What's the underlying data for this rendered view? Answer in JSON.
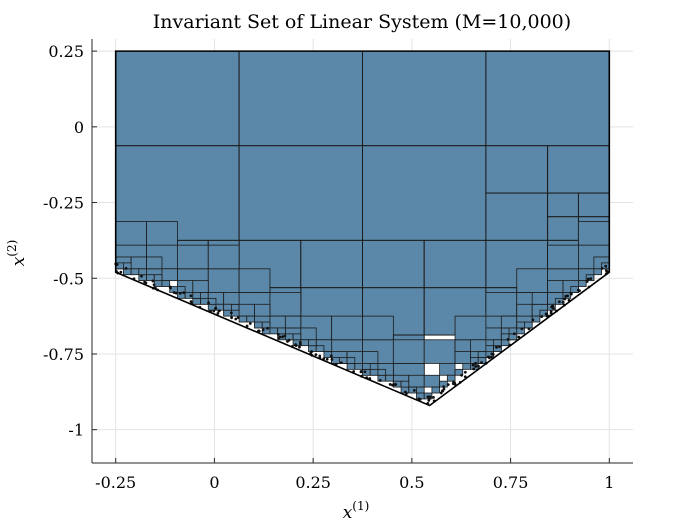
{
  "chart_data": {
    "type": "other",
    "title": "Invariant Set of Linear System (M=10,000)",
    "xlabel": "x",
    "xlabel_superscript": "(1)",
    "ylabel": "x",
    "ylabel_superscript": "(2)",
    "xlim": [
      -0.31,
      1.06
    ],
    "ylim": [
      -1.11,
      0.29
    ],
    "xticks": [
      -0.25,
      0,
      0.25,
      0.5,
      0.75,
      1
    ],
    "xtick_labels": [
      "-0.25",
      "0",
      "0.25",
      "0.5",
      "0.75",
      "1"
    ],
    "yticks": [
      0.25,
      0,
      -0.25,
      -0.5,
      -0.75,
      -1
    ],
    "ytick_labels": [
      "0.25",
      "0",
      "-0.25",
      "-0.5",
      "-0.75",
      "-1"
    ],
    "grid": true,
    "set_boundary": [
      [
        -0.25,
        0.25
      ],
      [
        1.0,
        0.25
      ],
      [
        1.0,
        -0.48
      ],
      [
        0.545,
        -0.92
      ],
      [
        -0.25,
        -0.48
      ]
    ],
    "fill_color": "#5b88a8",
    "cover_boxes": [
      [
        -0.25,
        0.0625,
        -0.0625,
        0.25
      ],
      [
        0.0625,
        0.375,
        -0.0625,
        0.25
      ],
      [
        0.375,
        0.6875,
        -0.0625,
        0.25
      ],
      [
        0.6875,
        1.0,
        -0.0625,
        0.25
      ],
      [
        -0.25,
        0.0625,
        -0.375,
        -0.0625
      ],
      [
        0.0625,
        0.375,
        -0.375,
        -0.0625
      ],
      [
        0.375,
        0.6875,
        -0.375,
        -0.0625
      ],
      [
        0.6875,
        0.84375,
        -0.21875,
        -0.0625
      ],
      [
        0.84375,
        1.0,
        -0.21875,
        -0.0625
      ],
      [
        0.6875,
        0.84375,
        -0.375,
        -0.21875
      ],
      [
        0.84375,
        0.921875,
        -0.296875,
        -0.21875
      ],
      [
        0.921875,
        1.0,
        -0.296875,
        -0.21875
      ],
      [
        0.84375,
        0.921875,
        -0.375,
        -0.296875
      ],
      [
        0.921875,
        1.0,
        -0.375,
        -0.296875
      ],
      [
        0.0625,
        0.21875,
        -0.53125,
        -0.375
      ],
      [
        0.21875,
        0.375,
        -0.53125,
        -0.375
      ],
      [
        0.375,
        0.53125,
        -0.53125,
        -0.375
      ],
      [
        0.53125,
        0.6875,
        -0.53125,
        -0.375
      ],
      [
        0.6875,
        0.84375,
        -0.53125,
        -0.375
      ],
      [
        0.84375,
        0.921875,
        -0.453125,
        -0.375
      ],
      [
        -0.25,
        -0.171875,
        -0.453125,
        -0.375
      ],
      [
        -0.171875,
        -0.09375,
        -0.453125,
        -0.375
      ],
      [
        -0.09375,
        -0.015625,
        -0.453125,
        -0.375
      ],
      [
        -0.015625,
        0.0625,
        -0.453125,
        -0.375
      ],
      [
        0.21875,
        0.375,
        -0.6875,
        -0.53125
      ],
      [
        0.375,
        0.53125,
        -0.6875,
        -0.53125
      ],
      [
        0.53125,
        0.6875,
        -0.6875,
        -0.53125
      ],
      [
        0.0625,
        0.140625,
        -0.609375,
        -0.53125
      ],
      [
        0.140625,
        0.21875,
        -0.609375,
        -0.53125
      ],
      [
        0.6875,
        0.765625,
        -0.609375,
        -0.53125
      ],
      [
        0.296875,
        0.375,
        -0.765625,
        -0.6875
      ],
      [
        0.375,
        0.453125,
        -0.765625,
        -0.6875
      ],
      [
        0.453125,
        0.53125,
        -0.765625,
        -0.6875
      ],
      [
        0.453125,
        0.53125,
        -0.84375,
        -0.765625
      ]
    ],
    "scatter_density": "dense points along lower boundary edges"
  }
}
